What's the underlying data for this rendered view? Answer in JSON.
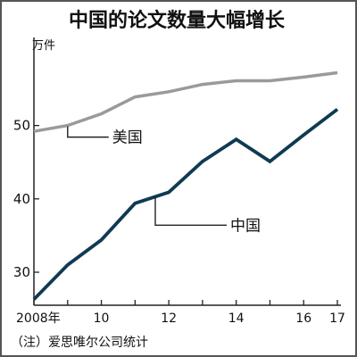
{
  "chart_data": {
    "type": "line",
    "title": "中国的论文数量大幅增长",
    "unit_label": "万件",
    "x": [
      2008,
      2009,
      2010,
      2011,
      2012,
      2013,
      2014,
      2015,
      2016,
      2017
    ],
    "x_tick_labels": [
      {
        "x": 2008,
        "label": "2008年"
      },
      {
        "x": 2010,
        "label": "10"
      },
      {
        "x": 2012,
        "label": "12"
      },
      {
        "x": 2014,
        "label": "14"
      },
      {
        "x": 2016,
        "label": "16"
      },
      {
        "x": 2017,
        "label": "17"
      }
    ],
    "ylim": [
      25.5,
      62
    ],
    "y_ticks": [
      30,
      40,
      50
    ],
    "series": [
      {
        "name": "美国",
        "color": "#9a9a9a",
        "values": [
          49.2,
          50.0,
          51.6,
          53.9,
          54.6,
          55.6,
          56.1,
          56.1,
          56.6,
          57.2
        ]
      },
      {
        "name": "中国",
        "color": "#0f3a52",
        "values": [
          26.3,
          31.0,
          34.4,
          39.4,
          40.9,
          45.1,
          48.1,
          45.1,
          48.7,
          52.2
        ]
      }
    ],
    "grid": false,
    "legend": "inline labels"
  },
  "note": "（注）爱思唯尔公司统计"
}
